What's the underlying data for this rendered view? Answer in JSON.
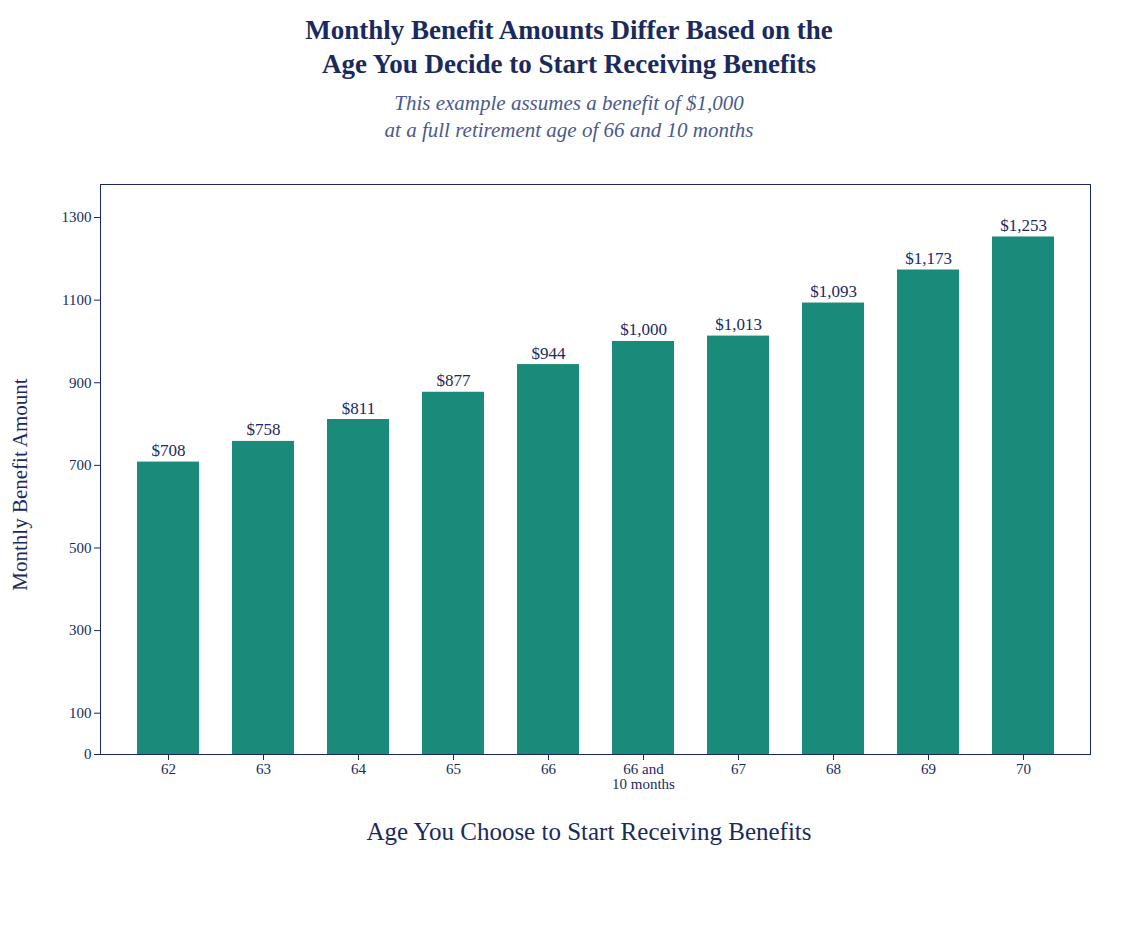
{
  "chart_data": {
    "type": "bar",
    "title": "Monthly Benefit Amounts Differ Based on the\nAge You Decide to Start Receiving Benefits",
    "subtitle": "This example assumes a benefit of $1,000\nat a full retirement age of 66 and 10 months",
    "xlabel": "Age You Choose to Start Receiving Benefits",
    "ylabel": "Monthly Benefit Amount",
    "categories": [
      "62",
      "63",
      "64",
      "65",
      "66",
      "66 and\n10 months",
      "67",
      "68",
      "69",
      "70"
    ],
    "values": [
      708,
      758,
      811,
      877,
      944,
      1000,
      1013,
      1093,
      1173,
      1253
    ],
    "value_labels": [
      "$708",
      "$758",
      "$811",
      "$877",
      "$944",
      "$1,000",
      "$1,013",
      "$1,093",
      "$1,173",
      "$1,253"
    ],
    "data_labels": true,
    "color": "#1a8a7a",
    "ylim": [
      0,
      1380
    ],
    "yticks": [
      0,
      100,
      300,
      500,
      700,
      900,
      1100,
      1300
    ],
    "grid": false
  }
}
